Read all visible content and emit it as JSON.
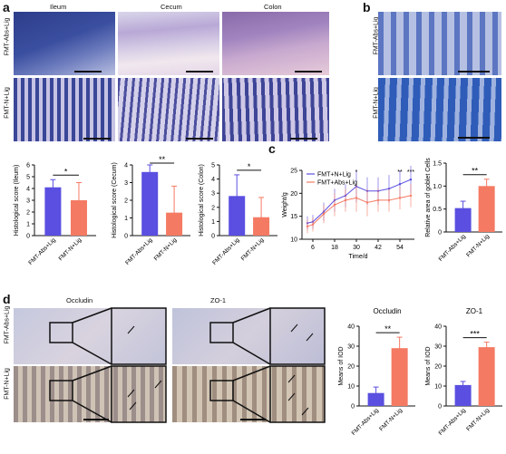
{
  "panel_labels": {
    "a": "a",
    "b": "b",
    "c": "c",
    "d": "d"
  },
  "panel_a": {
    "columns": [
      "Ileum",
      "Cecum",
      "Colon"
    ],
    "rows": [
      "FMT-Abs+Lig",
      "FMT-N+Lig"
    ]
  },
  "panel_b": {
    "rows": [
      "FMT-Abs+Lig",
      "FMT-N+Lig"
    ]
  },
  "panel_d": {
    "columns": [
      "Occludin",
      "ZO-1"
    ],
    "rows": [
      "FMT-Abs+Lig",
      "FMT-N+Lig"
    ]
  },
  "colors": {
    "blue": "#5a4fe0",
    "red": "#f47a63",
    "green_line": "#555555"
  },
  "chart_data": [
    {
      "id": "ileum",
      "type": "bar",
      "categories": [
        "FMT-Abs+Lig",
        "FMT-N+Lig"
      ],
      "values": [
        4.1,
        3.0
      ],
      "errors": [
        0.65,
        1.5
      ],
      "ylabel": "Histological score (Ileum)",
      "ylim": [
        0,
        6
      ],
      "yticks": [
        0,
        1,
        2,
        3,
        4,
        5,
        6
      ],
      "significance": "*"
    },
    {
      "id": "cecum",
      "type": "bar",
      "categories": [
        "FMT-Abs+Lig",
        "FMT-N+Lig"
      ],
      "values": [
        3.6,
        1.3
      ],
      "errors": [
        0.5,
        1.5
      ],
      "ylabel": "Histological score (Cecum)",
      "ylim": [
        0,
        4
      ],
      "yticks": [
        0,
        1,
        2,
        3,
        4
      ],
      "significance": "**"
    },
    {
      "id": "colon",
      "type": "bar",
      "categories": [
        "FMT-Abs+Lig",
        "FMT-N+Lig"
      ],
      "values": [
        2.8,
        1.3
      ],
      "errors": [
        1.5,
        1.4
      ],
      "ylabel": "Histological score (Colon)",
      "ylim": [
        0,
        5
      ],
      "yticks": [
        0,
        1,
        2,
        3,
        4,
        5
      ],
      "significance": "*"
    },
    {
      "id": "weight",
      "type": "line",
      "x": [
        3,
        6,
        12,
        18,
        24,
        30,
        36,
        42,
        48,
        54,
        60
      ],
      "series": [
        {
          "name": "FMT+N+Lig",
          "values": [
            13.5,
            13.8,
            16,
            18.5,
            19.5,
            21.5,
            20.5,
            20.5,
            21,
            22,
            23
          ],
          "errors": [
            1.5,
            1.5,
            2,
            2.5,
            2.5,
            3.5,
            3,
            3,
            3,
            3,
            3
          ]
        },
        {
          "name": "FMT+Abs+Lig",
          "values": [
            12.8,
            13.2,
            15.5,
            17.5,
            18.5,
            19,
            18,
            18.5,
            18.5,
            19,
            19.5
          ],
          "errors": [
            1.5,
            1.5,
            2,
            2.5,
            2.5,
            3,
            3,
            2.5,
            2.5,
            2.5,
            2.5
          ]
        }
      ],
      "xlabel": "Time/d",
      "ylabel": "Weight/g",
      "xticks": [
        6,
        18,
        30,
        42,
        54
      ],
      "yticks": [
        10,
        15,
        20,
        25
      ],
      "xlim": [
        0,
        62
      ],
      "ylim": [
        10,
        25
      ],
      "annotations": [
        {
          "x": 30,
          "text": "*"
        },
        {
          "x": 54,
          "text": "**"
        },
        {
          "x": 60,
          "text": "***"
        }
      ],
      "legend": "top-left"
    },
    {
      "id": "goblet",
      "type": "bar",
      "categories": [
        "FMT-Abs+Lig",
        "FMT-N+Lig"
      ],
      "values": [
        0.52,
        1.0
      ],
      "errors": [
        0.15,
        0.15
      ],
      "ylabel": "Relative area of goblet Cells",
      "ylim": [
        0,
        1.5
      ],
      "yticks": [
        0,
        0.5,
        1.0,
        1.5
      ],
      "ytick_labels": [
        "0",
        "0.5",
        "1.0",
        "1.5"
      ],
      "significance": "**"
    },
    {
      "id": "occludin",
      "type": "bar",
      "categories": [
        "FMT-Abs+Lig",
        "FMT-N+Lig"
      ],
      "values": [
        6.5,
        29
      ],
      "errors": [
        3,
        5.5
      ],
      "title": "Occludin",
      "ylabel": "Means of IOD",
      "ylim": [
        0,
        40
      ],
      "yticks": [
        0,
        10,
        20,
        30,
        40
      ],
      "significance": "**"
    },
    {
      "id": "zo1",
      "type": "bar",
      "categories": [
        "FMT-Abs+Lig",
        "FMT-N+Lig"
      ],
      "values": [
        10.5,
        29.5
      ],
      "errors": [
        1.8,
        2.5
      ],
      "title": "ZO-1",
      "ylabel": "Means of IOD",
      "ylim": [
        0,
        40
      ],
      "yticks": [
        0,
        10,
        20,
        30,
        40
      ],
      "significance": "***"
    }
  ]
}
